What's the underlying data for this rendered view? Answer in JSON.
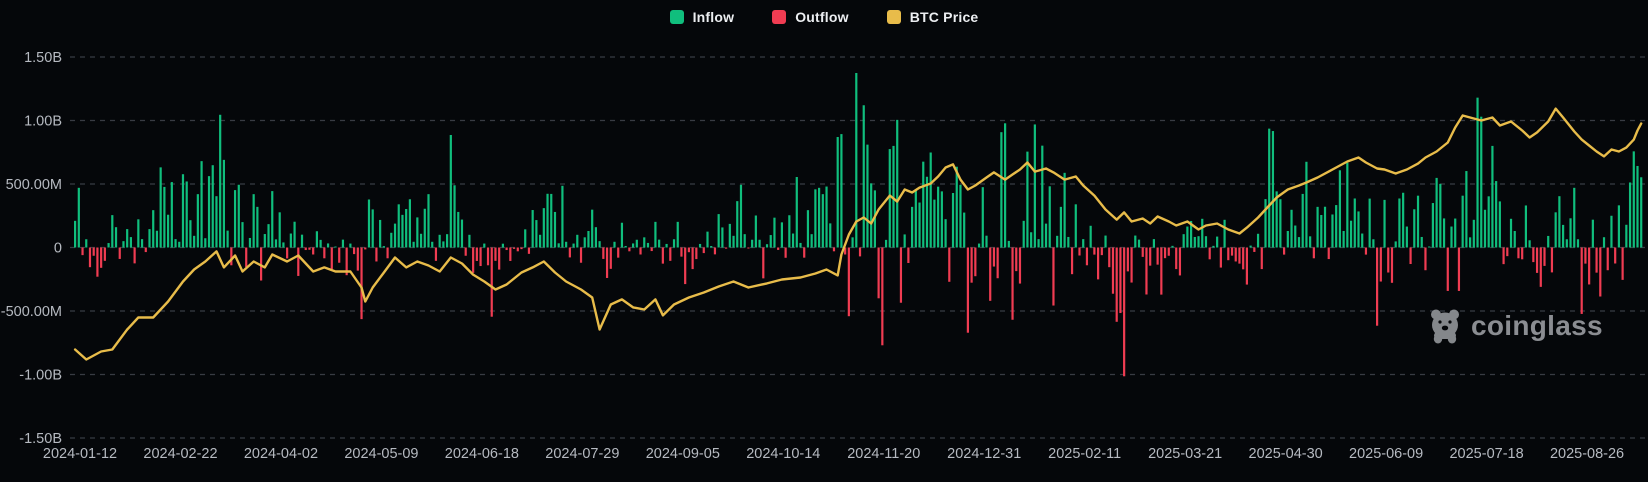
{
  "page": {
    "watermark_text": "coinglass"
  },
  "legend": {
    "items": [
      {
        "label": "Inflow",
        "color": "#10be7d"
      },
      {
        "label": "Outflow",
        "color": "#f03c52"
      },
      {
        "label": "BTC Price",
        "color": "#e8bc4a"
      }
    ]
  },
  "colors": {
    "background": "#05070a",
    "inflow": "#10be7d",
    "outflow": "#f03c52",
    "btc_price_line": "#e8bc4a",
    "gridline": "#41454d",
    "axis_label": "#b6bac1",
    "legend_text": "#eceef1",
    "watermark": "#97999e"
  },
  "chart_data": {
    "type": "bar",
    "title": "",
    "xlabel": "",
    "ylabel": "",
    "grid": "dashed horizontal",
    "legend_position": "top-center",
    "y_axis": {
      "unit": "USD",
      "ticks_millions": [
        1500,
        1000,
        500,
        0,
        -500,
        -1000,
        -1500
      ],
      "tick_labels": [
        "1.50B",
        "1.00B",
        "500.00M",
        "0",
        "-500.00M",
        "-1.00B",
        "-1.50B"
      ],
      "ylim_millions": [
        -1500,
        1500
      ]
    },
    "x_axis": {
      "tick_labels": [
        "2024-01-12",
        "2024-02-22",
        "2024-04-02",
        "2024-05-09",
        "2024-06-18",
        "2024-07-29",
        "2024-09-05",
        "2024-10-14",
        "2024-11-20",
        "2024-12-31",
        "2025-02-11",
        "2025-03-21",
        "2025-04-30",
        "2025-06-09",
        "2025-07-18",
        "2025-08-26"
      ]
    },
    "series_note": "Daily net flow bars (millions USD, positive=Inflow green, negative=Outflow red), estimated from pixels",
    "flows_millions": [
      210,
      470,
      -60,
      65,
      -155,
      -65,
      -230,
      -160,
      -105,
      35,
      255,
      160,
      -90,
      50,
      145,
      82,
      -125,
      222,
      66,
      -36,
      145,
      294,
      132,
      631,
      477,
      258,
      515,
      66,
      45,
      577,
      520,
      215,
      92,
      420,
      680,
      73,
      562,
      648,
      404,
      1045,
      690,
      133,
      -140,
      452,
      494,
      200,
      -155,
      75,
      420,
      320,
      -260,
      106,
      184,
      444,
      64,
      277,
      40,
      -86,
      110,
      203,
      -224,
      101,
      -20,
      -18,
      -55,
      128,
      60,
      -85,
      32,
      -170,
      4,
      -120,
      62,
      -218,
      31,
      -52,
      -182,
      -564,
      -15,
      378,
      300,
      -110,
      217,
      11,
      -85,
      116,
      188,
      340,
      257,
      303,
      380,
      45,
      237,
      108,
      305,
      420,
      45,
      -105,
      100,
      48,
      105,
      886,
      490,
      280,
      220,
      -65,
      100,
      -200,
      -106,
      -146,
      31,
      -140,
      -545,
      -105,
      -174,
      30,
      -20,
      -106,
      -11,
      -30,
      -13,
      143,
      -50,
      295,
      216,
      100,
      310,
      423,
      422,
      280,
      33,
      486,
      45,
      -78,
      31,
      100,
      -120,
      80,
      130,
      298,
      160,
      50,
      -90,
      -240,
      -168,
      45,
      -80,
      195,
      12,
      -30,
      32,
      61,
      -55,
      80,
      36,
      -28,
      202,
      62,
      -127,
      28,
      -105,
      65,
      202,
      -72,
      -288,
      -37,
      -170,
      -91,
      28,
      -44,
      125,
      12,
      -54,
      263,
      158,
      -9,
      186,
      92,
      365,
      494,
      105,
      -8,
      61,
      252,
      61,
      -243,
      26,
      98,
      235,
      -19,
      198,
      -81,
      254,
      110,
      555,
      36,
      -80,
      294,
      105,
      458,
      470,
      420,
      480,
      190,
      -30,
      870,
      893,
      -55,
      -541,
      80,
      1374,
      -70,
      1120,
      810,
      505,
      450,
      -400,
      -770,
      60,
      775,
      800,
      1005,
      -435,
      103,
      -122,
      320,
      450,
      354,
      676,
      557,
      748,
      377,
      479,
      442,
      223,
      -270,
      429,
      636,
      493,
      275,
      -671,
      -277,
      -226,
      31,
      475,
      93,
      -420,
      -150,
      -242,
      908,
      978,
      52,
      -569,
      -186,
      -284,
      210,
      755,
      120,
      969,
      66,
      802,
      188,
      482,
      -457,
      92,
      320,
      588,
      83,
      -210,
      340,
      -63,
      66,
      -140,
      171,
      -56,
      -251,
      -60,
      94,
      -155,
      -364,
      -585,
      -516,
      -1014,
      -188,
      -276,
      94,
      62,
      -74,
      -370,
      -143,
      66,
      -135,
      -371,
      -84,
      -65,
      13,
      -170,
      -220,
      105,
      165,
      209,
      83,
      89,
      226,
      89,
      -93,
      13,
      86,
      -158,
      218,
      -100,
      -64,
      -110,
      -127,
      -172,
      -292,
      15,
      -35,
      108,
      -170,
      381,
      936,
      917,
      442,
      380,
      -56,
      130,
      297,
      173,
      82,
      422,
      675,
      88,
      -85,
      320,
      256,
      321,
      -91,
      260,
      334,
      608,
      130,
      668,
      211,
      386,
      284,
      110,
      -56,
      385,
      65,
      -616,
      -268,
      375,
      -197,
      -278,
      48,
      386,
      431,
      165,
      -130,
      301,
      408,
      83,
      -179,
      6,
      350,
      548,
      501,
      229,
      -342,
      165,
      228,
      -342,
      408,
      602,
      80,
      218,
      1180,
      1030,
      297,
      403,
      800,
      523,
      363,
      -131,
      -68,
      226,
      130,
      -85,
      -93,
      331,
      57,
      -115,
      -200,
      -310,
      -145,
      91,
      -196,
      277,
      404,
      178,
      65,
      230,
      470,
      65,
      -523,
      -127,
      -291,
      219,
      -198,
      -386,
      81,
      -179,
      250,
      -126,
      332,
      -255,
      179,
      512,
      757,
      642,
      553
    ],
    "btc_price_overlay": {
      "note": "BTC price line has no visible price axis; values given in the flow-axis scale (millions) matching plotted height. Pairs are [bar_index, value].",
      "points": [
        [
          0,
          -803
        ],
        [
          3,
          -882
        ],
        [
          7,
          -819
        ],
        [
          10,
          -803
        ],
        [
          14,
          -646
        ],
        [
          17,
          -551
        ],
        [
          21,
          -551
        ],
        [
          25,
          -425
        ],
        [
          29,
          -268
        ],
        [
          32,
          -173
        ],
        [
          35,
          -110
        ],
        [
          38,
          -31
        ],
        [
          40,
          -157
        ],
        [
          43,
          -63
        ],
        [
          45,
          -189
        ],
        [
          48,
          -110
        ],
        [
          51,
          -157
        ],
        [
          53,
          -55
        ],
        [
          57,
          -110
        ],
        [
          60,
          -63
        ],
        [
          64,
          -189
        ],
        [
          67,
          -157
        ],
        [
          70,
          -189
        ],
        [
          74,
          -189
        ],
        [
          77,
          -315
        ],
        [
          78,
          -425
        ],
        [
          80,
          -315
        ],
        [
          83,
          -197
        ],
        [
          86,
          -79
        ],
        [
          89,
          -157
        ],
        [
          92,
          -110
        ],
        [
          95,
          -142
        ],
        [
          98,
          -189
        ],
        [
          101,
          -79
        ],
        [
          104,
          -126
        ],
        [
          107,
          -213
        ],
        [
          110,
          -268
        ],
        [
          113,
          -331
        ],
        [
          116,
          -291
        ],
        [
          120,
          -197
        ],
        [
          123,
          -157
        ],
        [
          126,
          -110
        ],
        [
          129,
          -197
        ],
        [
          132,
          -268
        ],
        [
          136,
          -331
        ],
        [
          139,
          -394
        ],
        [
          141,
          -646
        ],
        [
          144,
          -449
        ],
        [
          147,
          -409
        ],
        [
          150,
          -472
        ],
        [
          153,
          -488
        ],
        [
          156,
          -409
        ],
        [
          158,
          -535
        ],
        [
          161,
          -449
        ],
        [
          165,
          -394
        ],
        [
          169,
          -354
        ],
        [
          173,
          -307
        ],
        [
          177,
          -268
        ],
        [
          181,
          -315
        ],
        [
          186,
          -283
        ],
        [
          190,
          -252
        ],
        [
          195,
          -236
        ],
        [
          199,
          -205
        ],
        [
          202,
          -173
        ],
        [
          205,
          -220
        ],
        [
          206,
          -55
        ],
        [
          208,
          102
        ],
        [
          210,
          205
        ],
        [
          212,
          236
        ],
        [
          214,
          189
        ],
        [
          216,
          299
        ],
        [
          219,
          409
        ],
        [
          221,
          362
        ],
        [
          223,
          457
        ],
        [
          225,
          433
        ],
        [
          227,
          472
        ],
        [
          230,
          504
        ],
        [
          232,
          559
        ],
        [
          234,
          630
        ],
        [
          236,
          654
        ],
        [
          238,
          535
        ],
        [
          240,
          457
        ],
        [
          242,
          488
        ],
        [
          245,
          551
        ],
        [
          247,
          591
        ],
        [
          250,
          535
        ],
        [
          252,
          575
        ],
        [
          254,
          614
        ],
        [
          256,
          669
        ],
        [
          258,
          598
        ],
        [
          261,
          622
        ],
        [
          263,
          591
        ],
        [
          266,
          535
        ],
        [
          269,
          559
        ],
        [
          271,
          488
        ],
        [
          274,
          409
        ],
        [
          277,
          299
        ],
        [
          280,
          220
        ],
        [
          282,
          276
        ],
        [
          284,
          205
        ],
        [
          287,
          228
        ],
        [
          289,
          189
        ],
        [
          291,
          244
        ],
        [
          294,
          205
        ],
        [
          296,
          173
        ],
        [
          299,
          205
        ],
        [
          302,
          142
        ],
        [
          304,
          173
        ],
        [
          307,
          189
        ],
        [
          310,
          142
        ],
        [
          313,
          110
        ],
        [
          315,
          157
        ],
        [
          318,
          236
        ],
        [
          321,
          331
        ],
        [
          323,
          394
        ],
        [
          326,
          457
        ],
        [
          329,
          488
        ],
        [
          331,
          512
        ],
        [
          334,
          551
        ],
        [
          337,
          598
        ],
        [
          339,
          630
        ],
        [
          342,
          677
        ],
        [
          345,
          709
        ],
        [
          347,
          669
        ],
        [
          350,
          622
        ],
        [
          352,
          614
        ],
        [
          355,
          583
        ],
        [
          358,
          614
        ],
        [
          361,
          661
        ],
        [
          363,
          709
        ],
        [
          366,
          756
        ],
        [
          369,
          827
        ],
        [
          371,
          945
        ],
        [
          373,
          1039
        ],
        [
          375,
          1024
        ],
        [
          378,
          1000
        ],
        [
          381,
          1024
        ],
        [
          383,
          961
        ],
        [
          386,
          992
        ],
        [
          389,
          921
        ],
        [
          391,
          866
        ],
        [
          393,
          906
        ],
        [
          396,
          992
        ],
        [
          398,
          1094
        ],
        [
          400,
          1024
        ],
        [
          403,
          913
        ],
        [
          405,
          850
        ],
        [
          407,
          803
        ],
        [
          409,
          756
        ],
        [
          411,
          717
        ],
        [
          413,
          772
        ],
        [
          415,
          756
        ],
        [
          417,
          787
        ],
        [
          419,
          850
        ],
        [
          420,
          921
        ],
        [
          421,
          976
        ]
      ]
    }
  }
}
